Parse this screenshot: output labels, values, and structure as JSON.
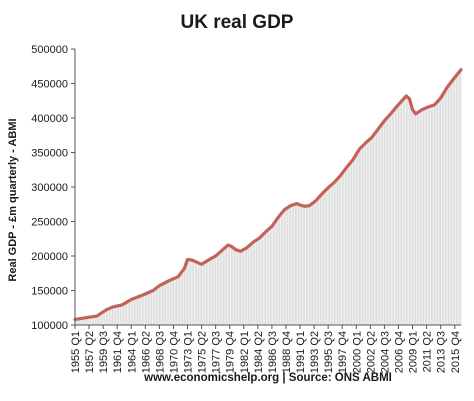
{
  "chart_data": {
    "type": "area",
    "title": "UK real GDP",
    "ylabel": "Real GDP - £m quarterly - ABMI",
    "xlabel": "",
    "source": "www.economicshelp.org | Source: ONS ABMI",
    "ylim": [
      100000,
      500000
    ],
    "yticks": [
      100000,
      150000,
      200000,
      250000,
      300000,
      350000,
      400000,
      450000,
      500000
    ],
    "xlim": [
      1955.0,
      2016.75
    ],
    "xticks": [
      {
        "label": "1955 Q1",
        "t": 1955.0
      },
      {
        "label": "1957 Q2",
        "t": 1957.25
      },
      {
        "label": "1959 Q3",
        "t": 1959.5
      },
      {
        "label": "1961 Q4",
        "t": 1961.75
      },
      {
        "label": "1964 Q1",
        "t": 1964.0
      },
      {
        "label": "1966 Q2",
        "t": 1966.25
      },
      {
        "label": "1968 Q3",
        "t": 1968.5
      },
      {
        "label": "1970 Q4",
        "t": 1970.75
      },
      {
        "label": "1973 Q1",
        "t": 1973.0
      },
      {
        "label": "1975 Q2",
        "t": 1975.25
      },
      {
        "label": "1977 Q3",
        "t": 1977.5
      },
      {
        "label": "1979 Q4",
        "t": 1979.75
      },
      {
        "label": "1982 Q1",
        "t": 1982.0
      },
      {
        "label": "1984 Q2",
        "t": 1984.25
      },
      {
        "label": "1986 Q3",
        "t": 1986.5
      },
      {
        "label": "1988 Q4",
        "t": 1988.75
      },
      {
        "label": "1991 Q1",
        "t": 1991.0
      },
      {
        "label": "1993 Q2",
        "t": 1993.25
      },
      {
        "label": "1995 Q3",
        "t": 1995.5
      },
      {
        "label": "1997 Q4",
        "t": 1997.75
      },
      {
        "label": "2000 Q1",
        "t": 2000.0
      },
      {
        "label": "2002 Q2",
        "t": 2002.25
      },
      {
        "label": "2004 Q3",
        "t": 2004.5
      },
      {
        "label": "2006 Q4",
        "t": 2006.75
      },
      {
        "label": "2009 Q1",
        "t": 2009.0
      },
      {
        "label": "2011 Q2",
        "t": 2011.25
      },
      {
        "label": "2013 Q3",
        "t": 2013.5
      },
      {
        "label": "2015 Q4",
        "t": 2015.75
      }
    ],
    "series": [
      {
        "points": [
          [
            1955.0,
            108000
          ],
          [
            1957.0,
            111000
          ],
          [
            1958.5,
            113000
          ],
          [
            1960.0,
            122000
          ],
          [
            1961.0,
            126000
          ],
          [
            1962.5,
            129000
          ],
          [
            1964.0,
            137000
          ],
          [
            1966.0,
            144000
          ],
          [
            1967.5,
            150000
          ],
          [
            1968.5,
            157000
          ],
          [
            1970.0,
            164000
          ],
          [
            1971.5,
            170000
          ],
          [
            1972.5,
            182000
          ],
          [
            1973.0,
            195000
          ],
          [
            1973.75,
            194000
          ],
          [
            1974.5,
            191000
          ],
          [
            1975.25,
            188000
          ],
          [
            1976.5,
            195000
          ],
          [
            1977.5,
            200000
          ],
          [
            1978.5,
            208000
          ],
          [
            1979.5,
            216000
          ],
          [
            1980.0,
            214000
          ],
          [
            1980.75,
            209000
          ],
          [
            1981.5,
            207000
          ],
          [
            1982.5,
            212000
          ],
          [
            1983.5,
            220000
          ],
          [
            1984.5,
            226000
          ],
          [
            1985.5,
            235000
          ],
          [
            1986.5,
            243000
          ],
          [
            1987.5,
            256000
          ],
          [
            1988.5,
            267000
          ],
          [
            1989.5,
            273000
          ],
          [
            1990.5,
            276000
          ],
          [
            1991.0,
            274000
          ],
          [
            1991.75,
            272000
          ],
          [
            1992.5,
            273000
          ],
          [
            1993.5,
            280000
          ],
          [
            1994.5,
            290000
          ],
          [
            1995.5,
            299000
          ],
          [
            1996.5,
            307000
          ],
          [
            1997.5,
            317000
          ],
          [
            1998.5,
            329000
          ],
          [
            1999.5,
            340000
          ],
          [
            2000.5,
            355000
          ],
          [
            2001.5,
            364000
          ],
          [
            2002.5,
            372000
          ],
          [
            2003.5,
            384000
          ],
          [
            2004.5,
            396000
          ],
          [
            2005.5,
            406000
          ],
          [
            2006.5,
            417000
          ],
          [
            2007.5,
            427000
          ],
          [
            2008.0,
            432000
          ],
          [
            2008.5,
            428000
          ],
          [
            2009.0,
            412000
          ],
          [
            2009.5,
            406000
          ],
          [
            2010.5,
            412000
          ],
          [
            2011.5,
            416000
          ],
          [
            2012.5,
            419000
          ],
          [
            2013.5,
            429000
          ],
          [
            2014.5,
            444000
          ],
          [
            2015.5,
            456000
          ],
          [
            2016.75,
            470000
          ]
        ]
      }
    ],
    "colors": {
      "line": "#c4625a",
      "fill": "#d6d6d6",
      "axis": "#555555"
    },
    "grid": false,
    "legend": "none"
  }
}
